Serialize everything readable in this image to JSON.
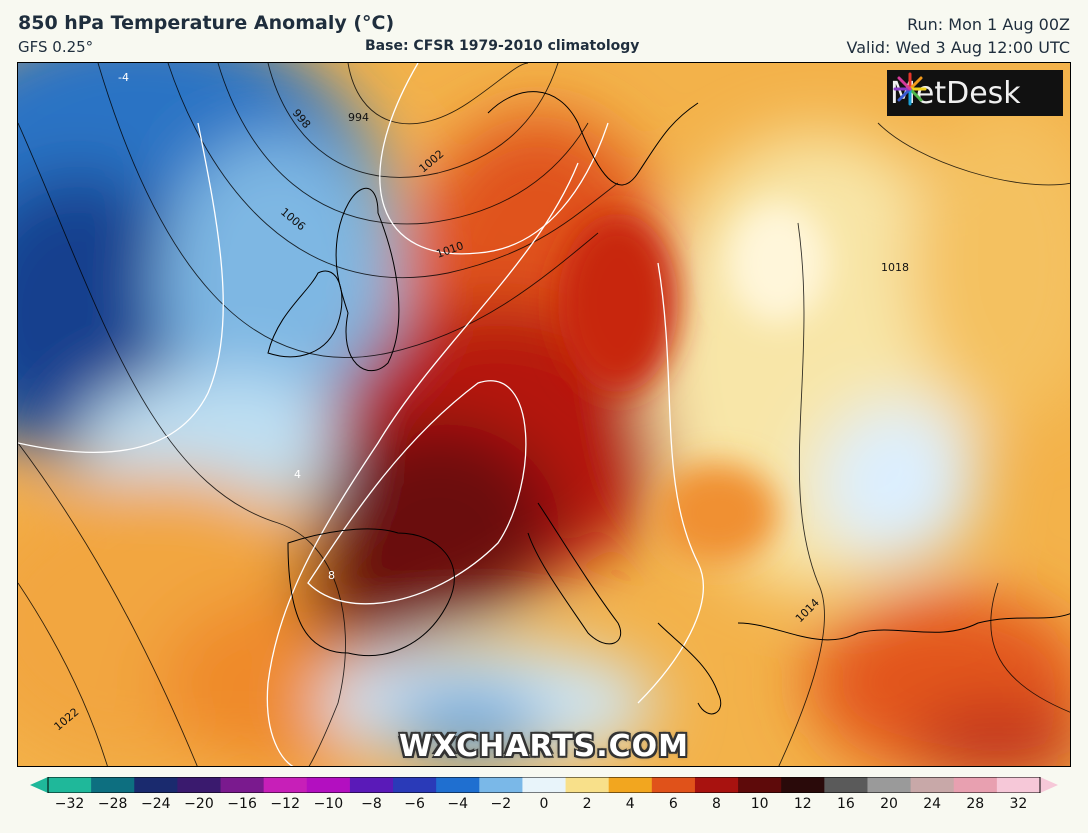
{
  "header": {
    "title": "850 hPa Temperature Anomaly (°C)",
    "model": "GFS 0.25°",
    "base": "Base: CFSR 1979-2010 climatology",
    "run": "Run: Mon 1 Aug 00Z",
    "valid": "Valid: Wed 3 Aug 12:00 UTC"
  },
  "logo": {
    "text": "MetDesk",
    "icon": "metdesk-starburst-icon"
  },
  "watermark": "WXCHARTS.COM",
  "colorbar": {
    "ticks": [
      "−32",
      "−28",
      "−24",
      "−20",
      "−16",
      "−12",
      "−10",
      "−8",
      "−6",
      "−4",
      "−2",
      "0",
      "2",
      "4",
      "6",
      "8",
      "10",
      "12",
      "16",
      "20",
      "24",
      "28",
      "32"
    ],
    "colors": [
      "#1fb89a",
      "#0d6f80",
      "#1a2a6e",
      "#3a1a6e",
      "#7a1a8e",
      "#c71fb8",
      "#b30fc0",
      "#5a1ab8",
      "#2a3ab8",
      "#1f6fd0",
      "#7ab8e8",
      "#e8f4fa",
      "#f8e08a",
      "#f2a61f",
      "#e0521a",
      "#a8120f",
      "#5e0a0a",
      "#2a0a0a",
      "#5a5a5a",
      "#9a9a9a",
      "#c8a8a8",
      "#e8a0b0",
      "#f6c8d8"
    ]
  },
  "isobars": [
    {
      "label": "994"
    },
    {
      "label": "998"
    },
    {
      "label": "1002"
    },
    {
      "label": "1006"
    },
    {
      "label": "1010"
    },
    {
      "label": "1014"
    },
    {
      "label": "1018"
    },
    {
      "label": "1022"
    }
  ],
  "anomaly_contours": [
    "-4",
    "4",
    "8"
  ]
}
